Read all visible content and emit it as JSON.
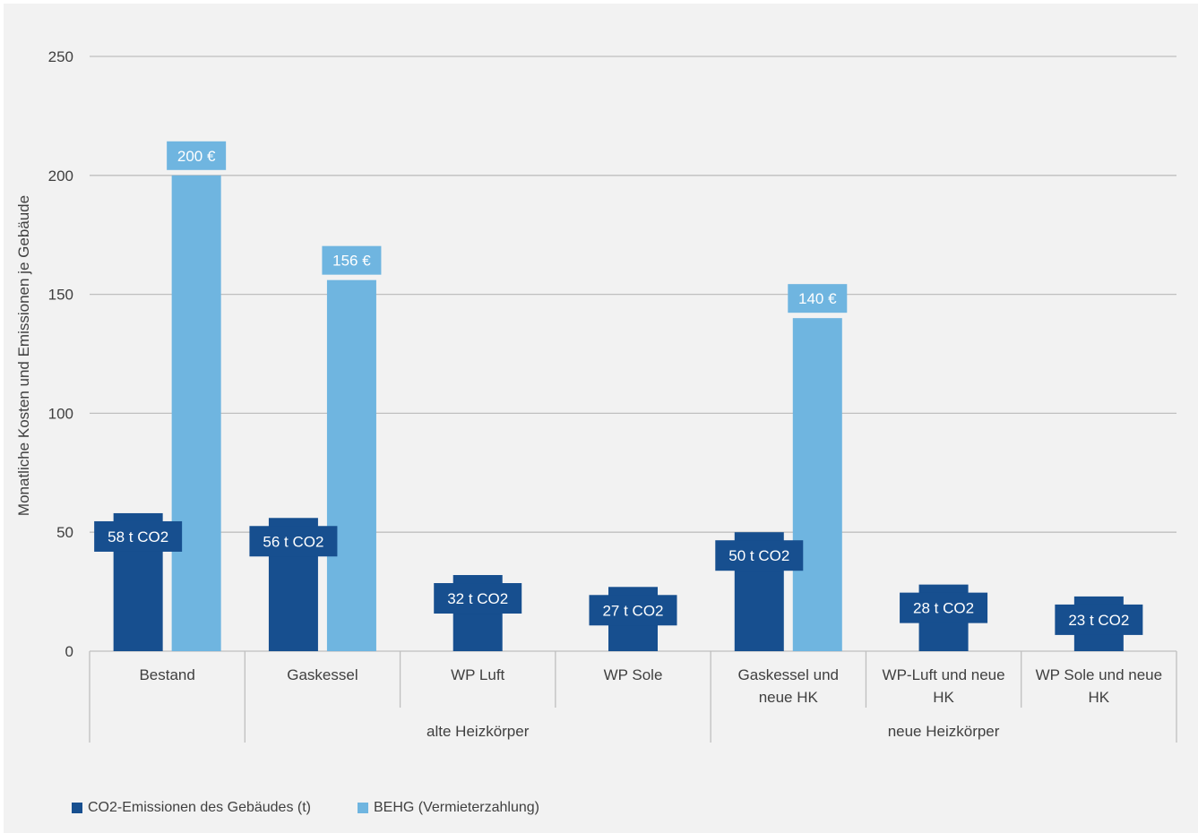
{
  "chart_data": {
    "type": "bar",
    "title": "",
    "ylabel": "Monatliche Kosten und Emissionen je Gebäude",
    "ylim": [
      0,
      250
    ],
    "yticks": [
      0,
      50,
      100,
      150,
      200,
      250
    ],
    "grid": true,
    "legend_position": "bottom-left",
    "categories": [
      "Bestand",
      "Gaskessel",
      "WP Luft",
      "WP Sole",
      "Gaskessel und neue HK",
      "WP-Luft und neue HK",
      "WP Sole und neue HK"
    ],
    "category_label_lines": [
      [
        "Bestand"
      ],
      [
        "Gaskessel"
      ],
      [
        "WP Luft"
      ],
      [
        "WP Sole"
      ],
      [
        "Gaskessel und",
        "neue HK"
      ],
      [
        "WP-Luft und neue",
        "HK"
      ],
      [
        "WP Sole und neue",
        "HK"
      ]
    ],
    "groups": [
      {
        "label": "",
        "categories": [
          "Bestand"
        ]
      },
      {
        "label": "alte Heizkörper",
        "categories": [
          "Gaskessel",
          "WP Luft",
          "WP Sole"
        ]
      },
      {
        "label": "neue Heizkörper",
        "categories": [
          "Gaskessel und neue HK",
          "WP-Luft und neue HK",
          "WP Sole und neue HK"
        ]
      }
    ],
    "series": [
      {
        "name": "CO2-Emissionen des Gebäudes (t)",
        "color": "#174f8f",
        "values": [
          58,
          56,
          32,
          27,
          50,
          28,
          23
        ],
        "labels": [
          "58 t CO2",
          "56 t CO2",
          "32 t CO2",
          "27 t CO2",
          "50 t CO2",
          "28 t CO2",
          "23 t CO2"
        ]
      },
      {
        "name": "BEHG (Vermieterzahlung)",
        "color": "#6fb5e0",
        "values": [
          200,
          156,
          null,
          null,
          140,
          null,
          null
        ],
        "labels": [
          "200 €",
          "156 €",
          null,
          null,
          "140 €",
          null,
          null
        ]
      }
    ]
  }
}
